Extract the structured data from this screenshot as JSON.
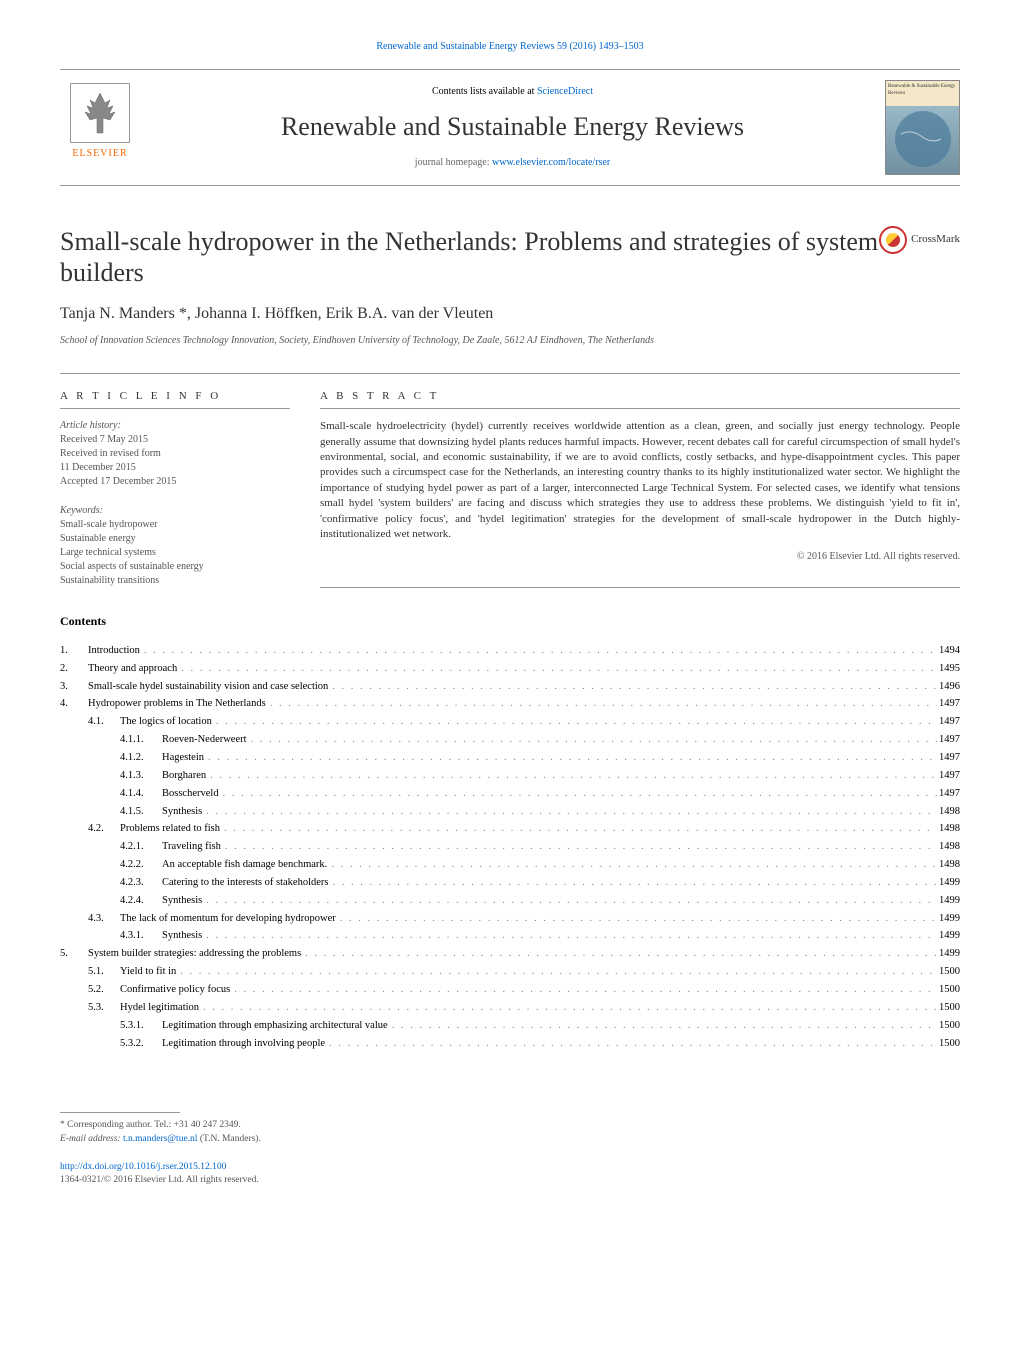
{
  "header": {
    "top_link": "Renewable and Sustainable Energy Reviews 59 (2016) 1493–1503",
    "contents_available": "Contents lists available at ",
    "sciencedirect": "ScienceDirect",
    "journal_name": "Renewable and Sustainable Energy Reviews",
    "homepage_label": "journal homepage: ",
    "homepage_url": "www.elsevier.com/locate/rser",
    "elsevier_label": "ELSEVIER",
    "cover_text": "Renewable & Sustainable Energy Reviews"
  },
  "article": {
    "title": "Small-scale hydropower in the Netherlands: Problems and strategies of system builders",
    "crossmark_label": "CrossMark",
    "authors": "Tanja N. Manders *, Johanna I. Höffken, Erik B.A. van der Vleuten",
    "affiliation": "School of Innovation Sciences Technology Innovation, Society, Eindhoven University of Technology, De Zaale, 5612 AJ Eindhoven, The Netherlands"
  },
  "info": {
    "section_label": "A R T I C L E   I N F O",
    "history_label": "Article history:",
    "received": "Received 7 May 2015",
    "revised": "Received in revised form",
    "revised_date": "11 December 2015",
    "accepted": "Accepted 17 December 2015",
    "keywords_label": "Keywords:",
    "keywords": [
      "Small-scale hydropower",
      "Sustainable energy",
      "Large technical systems",
      "Social aspects of sustainable energy",
      "Sustainability transitions"
    ]
  },
  "abstract": {
    "section_label": "A B S T R A C T",
    "text": "Small-scale hydroelectricity (hydel) currently receives worldwide attention as a clean, green, and socially just energy technology. People generally assume that downsizing hydel plants reduces harmful impacts. However, recent debates call for careful circumspection of small hydel's environmental, social, and economic sustainability, if we are to avoid conflicts, costly setbacks, and hype-disappointment cycles. This paper provides such a circumspect case for the Netherlands, an interesting country thanks to its highly institutionalized water sector. We highlight the importance of studying hydel power as part of a larger, interconnected Large Technical System. For selected cases, we identify what tensions small hydel 'system builders' are facing and discuss which strategies they use to address these problems. We distinguish 'yield to fit in', 'confirmative policy focus', and 'hydel legitimation' strategies for the development of small-scale hydropower in the Dutch highly-institutionalized wet network.",
    "copyright": "© 2016 Elsevier Ltd. All rights reserved."
  },
  "contents": {
    "heading": "Contents",
    "items": [
      {
        "num": "1.",
        "level": 1,
        "title": "Introduction",
        "page": "1494"
      },
      {
        "num": "2.",
        "level": 1,
        "title": "Theory and approach",
        "page": "1495"
      },
      {
        "num": "3.",
        "level": 1,
        "title": "Small-scale hydel sustainability vision and case selection",
        "page": "1496"
      },
      {
        "num": "4.",
        "level": 1,
        "title": "Hydropower problems in The Netherlands",
        "page": "1497"
      },
      {
        "num": "4.1.",
        "level": 2,
        "title": "The logics of location",
        "page": "1497"
      },
      {
        "num": "4.1.1.",
        "level": 3,
        "title": "Roeven-Nederweert",
        "page": "1497"
      },
      {
        "num": "4.1.2.",
        "level": 3,
        "title": "Hagestein",
        "page": "1497"
      },
      {
        "num": "4.1.3.",
        "level": 3,
        "title": "Borgharen",
        "page": "1497"
      },
      {
        "num": "4.1.4.",
        "level": 3,
        "title": "Bosscherveld",
        "page": "1497"
      },
      {
        "num": "4.1.5.",
        "level": 3,
        "title": "Synthesis",
        "page": "1498"
      },
      {
        "num": "4.2.",
        "level": 2,
        "title": "Problems related to fish",
        "page": "1498"
      },
      {
        "num": "4.2.1.",
        "level": 3,
        "title": "Traveling fish",
        "page": "1498"
      },
      {
        "num": "4.2.2.",
        "level": 3,
        "title": "An acceptable fish damage benchmark.",
        "page": "1498"
      },
      {
        "num": "4.2.3.",
        "level": 3,
        "title": "Catering to the interests of stakeholders",
        "page": "1499"
      },
      {
        "num": "4.2.4.",
        "level": 3,
        "title": "Synthesis",
        "page": "1499"
      },
      {
        "num": "4.3.",
        "level": 2,
        "title": "The lack of momentum for developing hydropower",
        "page": "1499"
      },
      {
        "num": "4.3.1.",
        "level": 3,
        "title": "Synthesis",
        "page": "1499"
      },
      {
        "num": "5.",
        "level": 1,
        "title": "System builder strategies: addressing the problems",
        "page": "1499"
      },
      {
        "num": "5.1.",
        "level": 2,
        "title": "Yield to fit in",
        "page": "1500"
      },
      {
        "num": "5.2.",
        "level": 2,
        "title": "Confirmative policy focus",
        "page": "1500"
      },
      {
        "num": "5.3.",
        "level": 2,
        "title": "Hydel legitimation",
        "page": "1500"
      },
      {
        "num": "5.3.1.",
        "level": 3,
        "title": "Legitimation through emphasizing architectural value",
        "page": "1500"
      },
      {
        "num": "5.3.2.",
        "level": 3,
        "title": "Legitimation through involving people",
        "page": "1500"
      }
    ]
  },
  "footer": {
    "corresponding": "* Corresponding author. Tel.: +31 40 247 2349.",
    "email_label": "E-mail address: ",
    "email": "t.n.manders@tue.nl",
    "email_suffix": " (T.N. Manders).",
    "doi": "http://dx.doi.org/10.1016/j.rser.2015.12.100",
    "issn": "1364-0321/© 2016 Elsevier Ltd. All rights reserved."
  }
}
